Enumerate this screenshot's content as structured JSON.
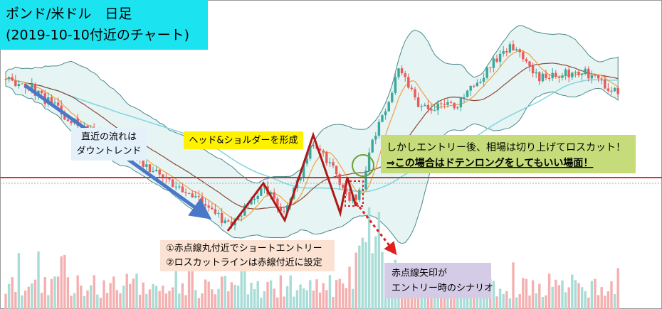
{
  "title": {
    "lines": [
      "ポンド/米ドル　日足",
      "(2019-10-10付近のチャート)"
    ]
  },
  "annotations": [
    {
      "lines": [
        "直近の流れは",
        "ダウントレンド"
      ]
    },
    {
      "lines": [
        "ヘッド&ショルダーを形成"
      ]
    },
    {
      "lines": [
        "しかしエントリー後、相場は切り上げてロスカット！",
        "⇒この場合はドテンロングをしてもいい場面！"
      ]
    },
    {
      "lines": [
        "①赤点線丸付近でショートエントリー",
        "②ロスカットラインは赤線付近に設定"
      ]
    },
    {
      "lines": [
        "赤点線矢印が",
        "エントリー時のシナリオ"
      ]
    }
  ]
}
